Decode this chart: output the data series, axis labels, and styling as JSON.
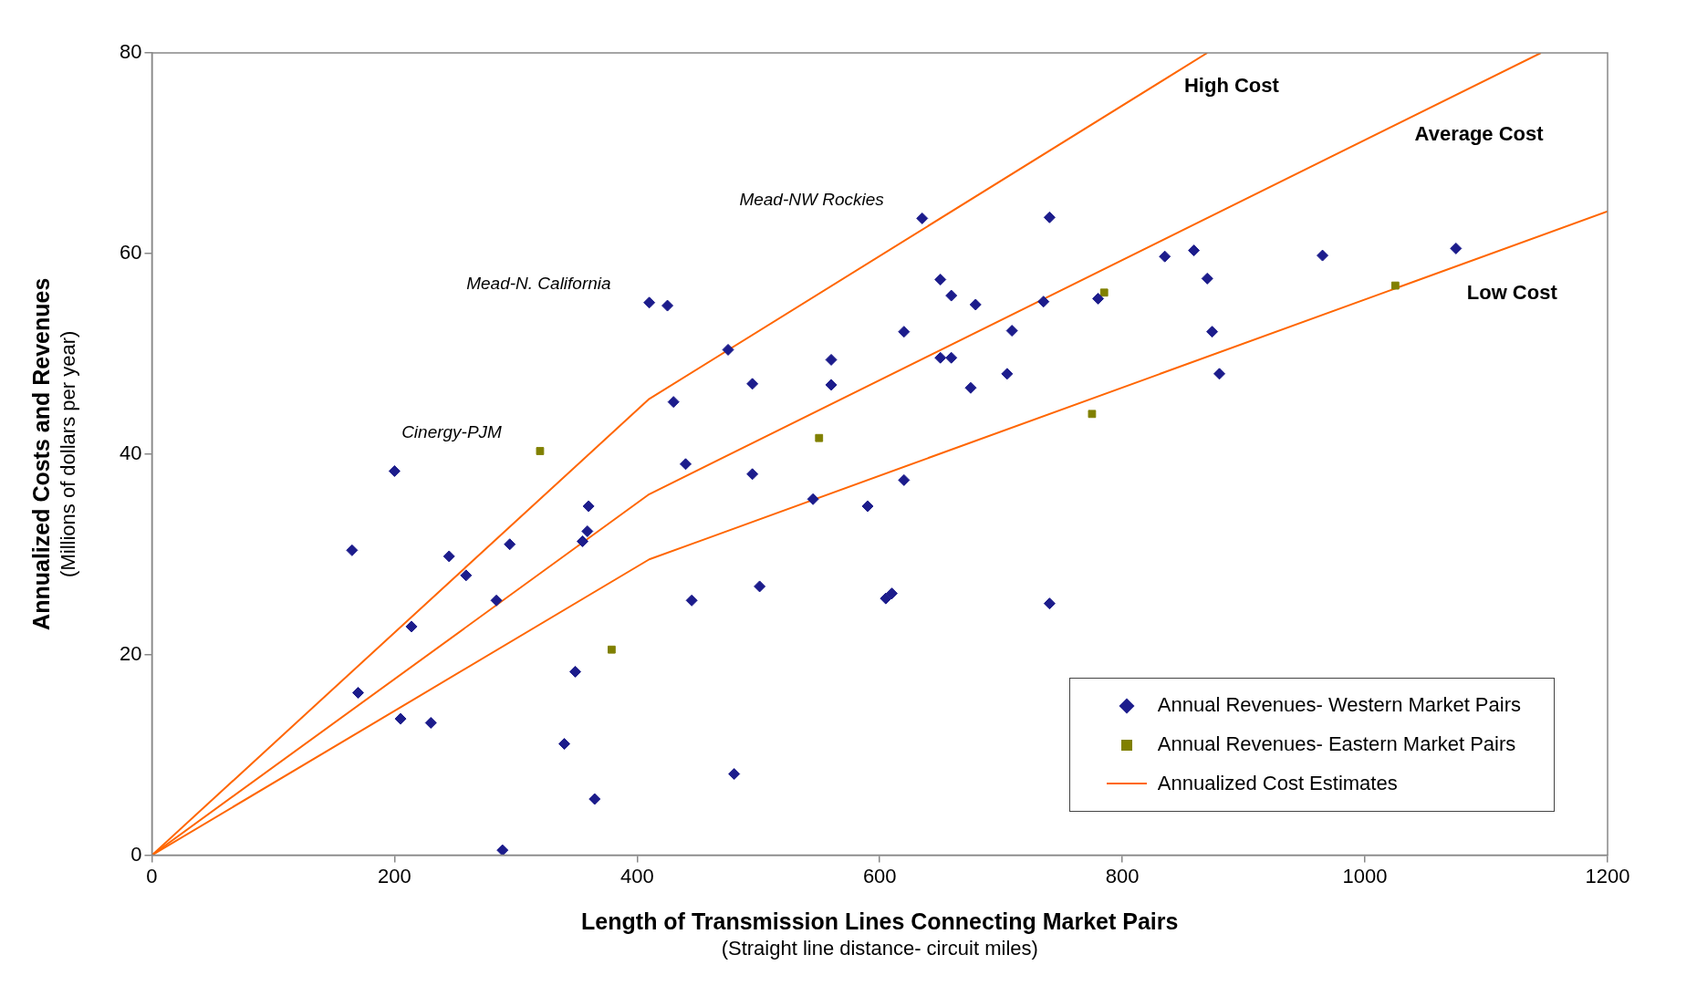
{
  "chart_data": {
    "type": "scatter",
    "xlabel": "Length of Transmission Lines Connecting Market Pairs\n(Straight line distance- circuit miles)",
    "ylabel": "Annualized Costs and Revenues\n(Millions of dollars per year)",
    "xlim": [
      0,
      1200
    ],
    "xticks": [
      0,
      200,
      400,
      600,
      800,
      1000,
      1200
    ],
    "ylim": [
      0,
      80
    ],
    "yticks": [
      0,
      20,
      40,
      60,
      80
    ],
    "grid": false,
    "legend": "bottom right",
    "series": [
      {
        "name": "Annual Revenues- Western Market Pairs",
        "color": "#1c1c8c",
        "marker": "diamond",
        "x": [
          165,
          170,
          200,
          205,
          214,
          230,
          245,
          259,
          284,
          289,
          295,
          340,
          349,
          355,
          359,
          360,
          365,
          410,
          425,
          430,
          440,
          445,
          475,
          480,
          495,
          495,
          501,
          545,
          560,
          560,
          590,
          605,
          610,
          620,
          620,
          635,
          650,
          650,
          659,
          659,
          675,
          679,
          705,
          709,
          735,
          740,
          740,
          780,
          835,
          859,
          870,
          874,
          880,
          965,
          1075
        ],
        "values": [
          30.4,
          16.2,
          38.3,
          13.6,
          22.8,
          13.2,
          29.8,
          27.9,
          25.4,
          0.5,
          31.0,
          11.1,
          18.3,
          31.3,
          32.3,
          34.8,
          5.6,
          55.1,
          54.8,
          45.2,
          39.0,
          25.4,
          50.4,
          8.1,
          47.0,
          38.0,
          26.8,
          35.5,
          46.9,
          49.4,
          34.8,
          25.6,
          26.1,
          52.2,
          37.4,
          63.5,
          57.4,
          49.6,
          55.8,
          49.6,
          46.6,
          54.9,
          48.0,
          52.3,
          55.2,
          63.6,
          25.1,
          55.5,
          59.7,
          60.3,
          57.5,
          52.2,
          48.0,
          59.8,
          60.5
        ]
      },
      {
        "name": "Annual Revenues- Eastern Market Pairs",
        "color": "#808000",
        "marker": "square",
        "x": [
          320,
          379,
          550,
          775,
          785,
          1025
        ],
        "values": [
          40.3,
          20.5,
          41.6,
          44.0,
          56.1,
          56.8
        ]
      },
      {
        "name": "Annualized Cost Estimates",
        "type": "line",
        "color": "#ff6600",
        "marker": "none",
        "x": [
          0,
          410,
          870
        ],
        "values": [
          0,
          45.5,
          80
        ]
      },
      {
        "type": "line",
        "color": "#ff6600",
        "marker": "none",
        "x": [
          0,
          410,
          1145
        ],
        "values": [
          0,
          36,
          80
        ]
      },
      {
        "type": "line",
        "color": "#ff6600",
        "marker": "none",
        "x": [
          0,
          410,
          1200
        ],
        "values": [
          0,
          29.5,
          64.2
        ]
      }
    ],
    "annotations": [
      {
        "text": "Mead-NW Rockies",
        "x": 635,
        "y": 63.5
      },
      {
        "text": "Mead-N. California",
        "x": 410,
        "y": 55.1
      },
      {
        "text": "Cinergy-PJM",
        "x": 320,
        "y": 40.3
      },
      {
        "text": "High Cost",
        "x": 851,
        "y": 78.6
      },
      {
        "text": "Average Cost",
        "x": 1041,
        "y": 73.8
      },
      {
        "text": "Low Cost",
        "x": 1084,
        "y": 59.1
      }
    ]
  }
}
